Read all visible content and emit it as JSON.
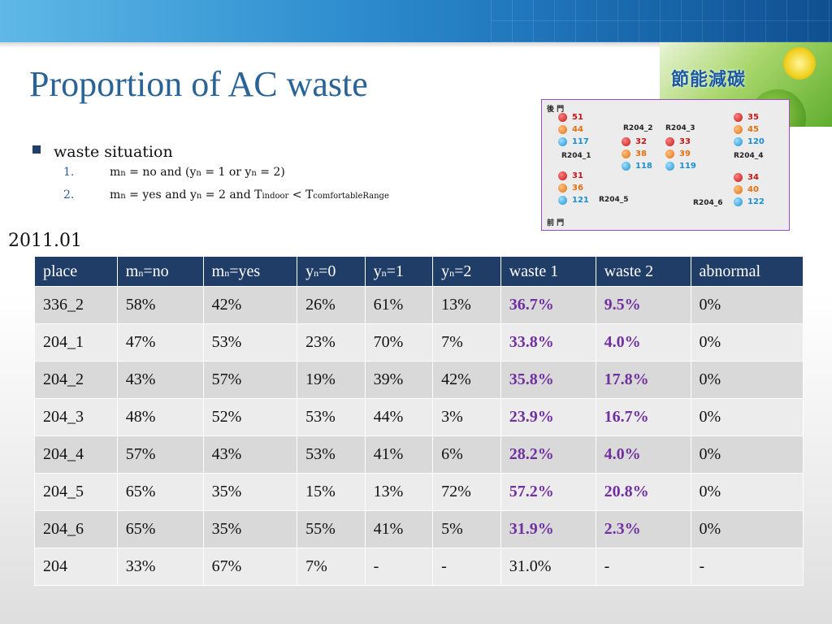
{
  "title": "Proportion  of AC waste",
  "logo_text": "節能減碳",
  "bullets": {
    "main": "waste situation",
    "items": [
      {
        "num": "1.",
        "parts": [
          "m",
          "n",
          " = no    and  (y",
          "n",
          " = 1 or y",
          "n",
          " = 2)"
        ]
      },
      {
        "num": "2.",
        "parts": [
          "m",
          "n",
          " = yes   and  y",
          "n",
          " = 2  and   T",
          "indoor",
          "  <  T",
          "comfortableRange",
          ""
        ]
      }
    ]
  },
  "date": "2011.01",
  "map": {
    "back_door": "後 門",
    "front_door": "前 門",
    "rooms": [
      {
        "name": "R204_1",
        "values": [
          "51",
          "44",
          "117"
        ]
      },
      {
        "name": "R204_2",
        "values": [
          "32",
          "38",
          "118"
        ]
      },
      {
        "name": "R204_3",
        "values": [
          "33",
          "39",
          "119"
        ]
      },
      {
        "name": "R204_4",
        "values": [
          "35",
          "45",
          "120"
        ]
      },
      {
        "name": "R204_5",
        "values": [
          "31",
          "36",
          "121"
        ]
      },
      {
        "name": "R204_6",
        "values": [
          "34",
          "40",
          "122"
        ]
      }
    ]
  },
  "table": {
    "headers": [
      {
        "main": "place",
        "sub": "",
        "rest": ""
      },
      {
        "main": "m",
        "sub": "n",
        "rest": "=no"
      },
      {
        "main": "m",
        "sub": "n",
        "rest": "=yes"
      },
      {
        "main": "y",
        "sub": "n",
        "rest": "=0"
      },
      {
        "main": "y",
        "sub": "n",
        "rest": "=1"
      },
      {
        "main": "y",
        "sub": "n",
        "rest": "=2"
      },
      {
        "main": "waste 1",
        "sub": "",
        "rest": ""
      },
      {
        "main": "waste 2",
        "sub": "",
        "rest": ""
      },
      {
        "main": "abnormal",
        "sub": "",
        "rest": ""
      }
    ],
    "rows": [
      [
        "336_2",
        "58%",
        "42%",
        "26%",
        "61%",
        "13%",
        "36.7%",
        "9.5%",
        "0%"
      ],
      [
        "204_1",
        "47%",
        "53%",
        "23%",
        "70%",
        "7%",
        "33.8%",
        "4.0%",
        "0%"
      ],
      [
        "204_2",
        "43%",
        "57%",
        "19%",
        "39%",
        "42%",
        "35.8%",
        "17.8%",
        "0%"
      ],
      [
        "204_3",
        "48%",
        "52%",
        "53%",
        "44%",
        "3%",
        "23.9%",
        "16.7%",
        "0%"
      ],
      [
        "204_4",
        "57%",
        "43%",
        "53%",
        "41%",
        "6%",
        "28.2%",
        "4.0%",
        "0%"
      ],
      [
        "204_5",
        "65%",
        "35%",
        "15%",
        "13%",
        "72%",
        "57.2%",
        "20.8%",
        "0%"
      ],
      [
        "204_6",
        "65%",
        "35%",
        "55%",
        "41%",
        "5%",
        "31.9%",
        "2.3%",
        "0%"
      ],
      [
        "204",
        "33%",
        "67%",
        "7%",
        "-",
        "-",
        "31.0%",
        "-",
        "-"
      ]
    ]
  },
  "colors": {
    "header_bg": "#1f3d66",
    "waste_text": "#7030a0",
    "title": "#2a6496"
  }
}
